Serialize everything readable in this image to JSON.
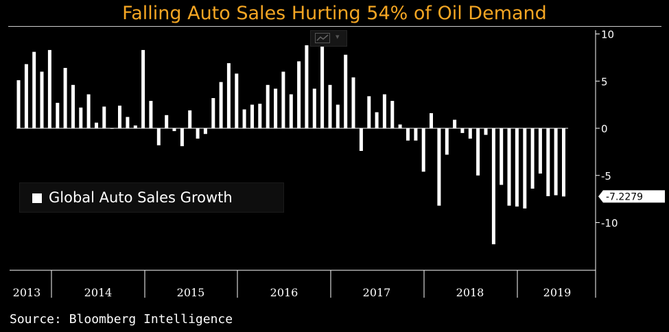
{
  "title": "Falling Auto Sales Hurting 54% of Oil Demand",
  "source": "Source: Bloomberg Intelligence",
  "legend_label": "Global Auto Sales Growth",
  "chart_type_button": {
    "icon": "line-chart-icon",
    "caret": "▾"
  },
  "colors": {
    "background": "#000000",
    "bars": "#ffffff",
    "title": "#f5a623",
    "axis": "#ffffff"
  },
  "chart_data": {
    "type": "bar",
    "ylim": [
      -15,
      10
    ],
    "yticks": [
      10,
      5,
      0,
      -5,
      -10
    ],
    "ytick_labels": [
      "10",
      "5",
      "0",
      "-5",
      "-10"
    ],
    "last_value_label": "-7.2279",
    "last_value": -7.2279,
    "x_year_labels": [
      "2013",
      "2014",
      "2015",
      "2016",
      "2017",
      "2018",
      "2019"
    ],
    "legend_position": "left",
    "grid": false,
    "series": [
      {
        "name": "Global Auto Sales Growth",
        "values": [
          5.1,
          6.8,
          8.1,
          6.0,
          8.3,
          2.7,
          6.4,
          4.6,
          2.2,
          3.6,
          0.6,
          2.3,
          0.0,
          2.4,
          1.2,
          0.3,
          8.3,
          2.9,
          -1.8,
          1.4,
          -0.3,
          -1.9,
          1.9,
          -1.1,
          -0.6,
          3.2,
          4.9,
          6.9,
          5.8,
          2.0,
          2.5,
          2.6,
          4.6,
          4.2,
          6.0,
          3.6,
          7.1,
          8.8,
          4.2,
          9.0,
          4.6,
          2.5,
          7.8,
          5.4,
          -2.4,
          3.4,
          1.7,
          3.6,
          2.9,
          0.4,
          -1.3,
          -1.3,
          -4.6,
          1.6,
          -8.2,
          -2.8,
          0.9,
          -0.5,
          -1.1,
          -5.0,
          -0.7,
          -12.3,
          -6.0,
          -8.2,
          -8.3,
          -8.5,
          -6.4,
          -4.8,
          -7.2,
          -7.1,
          -7.2279
        ]
      }
    ]
  }
}
